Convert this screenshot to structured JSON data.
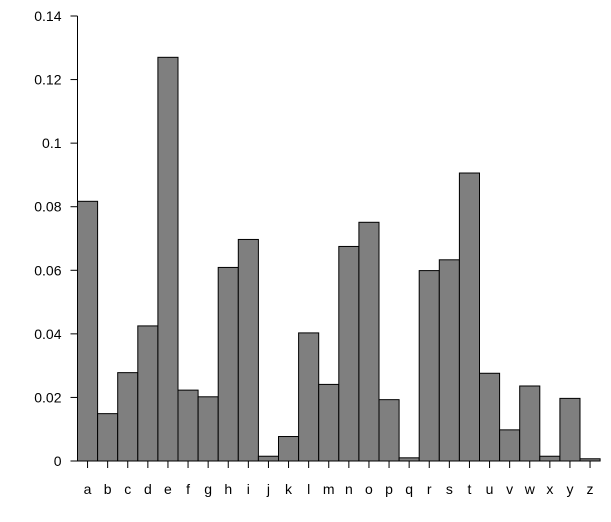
{
  "colors": {
    "bar_fill": "#7f7f7f",
    "bar_stroke": "#000000",
    "axis": "#000000"
  },
  "chart_data": {
    "type": "bar",
    "title": "",
    "xlabel": "",
    "ylabel": "",
    "ylim": [
      0,
      0.14
    ],
    "yticks": [
      0,
      0.02,
      0.04,
      0.06,
      0.08,
      0.1,
      0.12,
      0.14
    ],
    "ytick_labels": [
      "0",
      "0.02",
      "0.04",
      "0.06",
      "0.08",
      "0.1",
      "0.12",
      "0.14"
    ],
    "grid": false,
    "legend": "none",
    "categories": [
      "a",
      "b",
      "c",
      "d",
      "e",
      "f",
      "g",
      "h",
      "i",
      "j",
      "k",
      "l",
      "m",
      "n",
      "o",
      "p",
      "q",
      "r",
      "s",
      "t",
      "u",
      "v",
      "w",
      "x",
      "y",
      "z"
    ],
    "values": [
      0.0817,
      0.0149,
      0.0278,
      0.0425,
      0.127,
      0.0223,
      0.0202,
      0.0609,
      0.0697,
      0.0015,
      0.0077,
      0.0403,
      0.0241,
      0.0675,
      0.0751,
      0.0193,
      0.001,
      0.0599,
      0.0633,
      0.0906,
      0.0276,
      0.0098,
      0.0236,
      0.0015,
      0.0197,
      0.0007
    ]
  }
}
